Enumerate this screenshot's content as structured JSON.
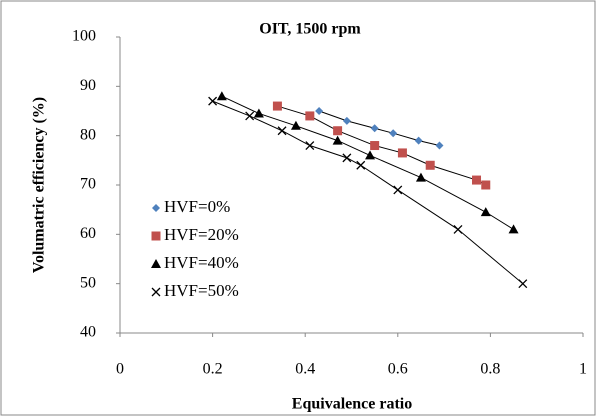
{
  "chart_data": {
    "type": "scatter",
    "title": "OIT, 1500 rpm",
    "x_label": "Equivalence ratio",
    "y_label": "Volumatric efficiency (%)",
    "xlim": [
      0,
      1
    ],
    "ylim": [
      40,
      100
    ],
    "xticks": [
      0,
      0.2,
      0.4,
      0.6,
      0.8,
      1
    ],
    "yticks": [
      40,
      50,
      60,
      70,
      80,
      90,
      100
    ],
    "trendline": true,
    "series": [
      {
        "name": "HVF=0%",
        "color": "#4f81bd",
        "marker": "diamond",
        "x": [
          0.43,
          0.49,
          0.55,
          0.59,
          0.645,
          0.69
        ],
        "values": [
          85,
          83,
          81.5,
          80.5,
          79,
          78
        ]
      },
      {
        "name": "HVF=20%",
        "color": "#c0504d",
        "marker": "square",
        "x": [
          0.34,
          0.41,
          0.47,
          0.55,
          0.61,
          0.67,
          0.77,
          0.79
        ],
        "values": [
          86,
          84,
          81,
          78,
          76.5,
          74,
          71,
          70
        ]
      },
      {
        "name": "HVF=40%",
        "color": "#000000",
        "marker": "triangle",
        "x": [
          0.22,
          0.3,
          0.38,
          0.47,
          0.54,
          0.65,
          0.79,
          0.85
        ],
        "values": [
          88,
          84.5,
          82,
          79,
          76,
          71.5,
          64.5,
          61
        ]
      },
      {
        "name": "HVF=50%",
        "color": "#000000",
        "marker": "x",
        "x": [
          0.2,
          0.28,
          0.35,
          0.41,
          0.49,
          0.52,
          0.6,
          0.73,
          0.87
        ],
        "values": [
          87,
          84,
          81,
          78,
          75.5,
          74,
          69,
          61,
          50
        ]
      }
    ]
  }
}
